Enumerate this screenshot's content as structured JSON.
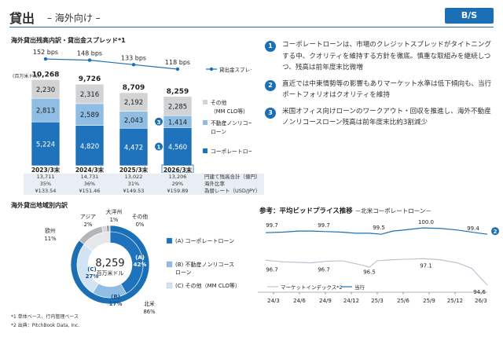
{
  "header": {
    "title": "貸出",
    "subtitle": "– 海外向け –",
    "badge": "B/S"
  },
  "bar_section": {
    "title": "海外貸出残高内訳・貸出金スプレッド*1",
    "unit": "(百万米ドル)",
    "spread_legend": "貸出金スプレッド*1",
    "markers": [
      "3",
      "1"
    ],
    "table": {
      "rows": [
        {
          "label": "円建て残高合計（億円）",
          "values": [
            "13,711",
            "14,731",
            "13,022",
            "13,206"
          ]
        },
        {
          "label": "海外比率",
          "values": [
            "35%",
            "36%",
            "31%",
            "29%"
          ]
        },
        {
          "label": "為替レート（USD/JPY）",
          "values": [
            "¥133.54",
            "¥151.46",
            "¥149.53",
            "¥159.89"
          ]
        }
      ]
    }
  },
  "chart_data": [
    {
      "type": "bar",
      "stacked": true,
      "categories": [
        "2023/3末",
        "2024/3末",
        "2025/3末",
        "2026/3末"
      ],
      "series": [
        {
          "name": "コーポレートローン",
          "values": [
            5224,
            4820,
            4472,
            4560
          ],
          "color": "#1f73bd"
        },
        {
          "name": "不動産ノンリコースローン",
          "values": [
            2813,
            2589,
            2043,
            1414
          ],
          "color": "#8fbde3"
        },
        {
          "name": "その他（MM CLO等）",
          "values": [
            2230,
            2316,
            2192,
            2285
          ],
          "color": "#d2d3d5"
        }
      ],
      "totals": [
        "10,268",
        "9,726",
        "8,709",
        "8,259"
      ],
      "spread": {
        "name": "貸出金スプレッド*1",
        "values": [
          152,
          148,
          133,
          118
        ],
        "labels": [
          "152 bps",
          "148 bps",
          "133 bps",
          "118 bps"
        ]
      },
      "legend": [
        "その他\n（MM CLO等）",
        "不動産ノンリコース\nローン",
        "コーポレートローン"
      ]
    },
    {
      "type": "pie",
      "title": "海外貸出地域別内訳",
      "center_value": "8,259",
      "center_unit": "百万米ドル",
      "slices": [
        {
          "name": "北米",
          "value": 86,
          "label": "86%",
          "color": "#1a6fb5"
        },
        {
          "name": "欧州",
          "value": 11,
          "label": "11%",
          "color": "#b4b6b9"
        },
        {
          "name": "アジア",
          "value": 2,
          "label": "2%",
          "color": "#d6d7d9"
        },
        {
          "name": "大洋州",
          "value": 1,
          "label": "1%",
          "color": "#8c8e91"
        },
        {
          "name": "その他",
          "value": 0,
          "label": "0%",
          "color": "#cfd0d2"
        }
      ],
      "inner_ring": [
        {
          "name": "(A)",
          "label": "42%",
          "value": 42,
          "color": "#1f73bd"
        },
        {
          "name": "(B)",
          "label": "17%",
          "value": 17,
          "color": "#8fbde3"
        },
        {
          "name": "(C)",
          "label": "27%",
          "value": 27,
          "color": "#d2e4f3"
        }
      ],
      "inner_legend": [
        "(A) コーポレートローン",
        "(B) 不動産ノンリコース\nローン",
        "(C) その他（MM CLO等）"
      ]
    },
    {
      "type": "line",
      "title": "参考：平均ビッドプライス推移",
      "subtitle": "－北米コーポレートローン－",
      "x_ticks": [
        "24/3",
        "24/6",
        "24/9",
        "24/12",
        "25/3",
        "25/6",
        "25/9",
        "25/12",
        "26/3"
      ],
      "series": [
        {
          "name": "当行",
          "color": "#1a6fb5"
        },
        {
          "name": "マーケットインデックス*2",
          "color": "#b9c5d3"
        }
      ],
      "labels_top": [
        "99.7",
        "99.7",
        "99.5",
        "100.0",
        "99.4"
      ],
      "labels_bottom": [
        "96.7",
        "96.7",
        "96.5",
        "97.1",
        "94.6"
      ],
      "marker": "2"
    }
  ],
  "bullets": [
    {
      "num": "1",
      "text": "コーポレートローンは、市場のクレジットスプレッドがタイトニングする中、クオリティを維持する方針を徹底。慎重な取組みを継続しつつ、残高は前年度末比微増"
    },
    {
      "num": "2",
      "text": "直近では中東情勢等の影響もありマーケット水準は低下傾向も、当行ポートフォリオはクオリティを維持"
    },
    {
      "num": "3",
      "text": "米国オフィス向けローンのワークアウト・回収を推進し、海外不動産ノンリコースローン残高は前年度末比約3割減少"
    }
  ],
  "footnotes": [
    "*1 単体ベース、行内管理ベース",
    "*2 出典：PitchBook Data, Inc."
  ]
}
